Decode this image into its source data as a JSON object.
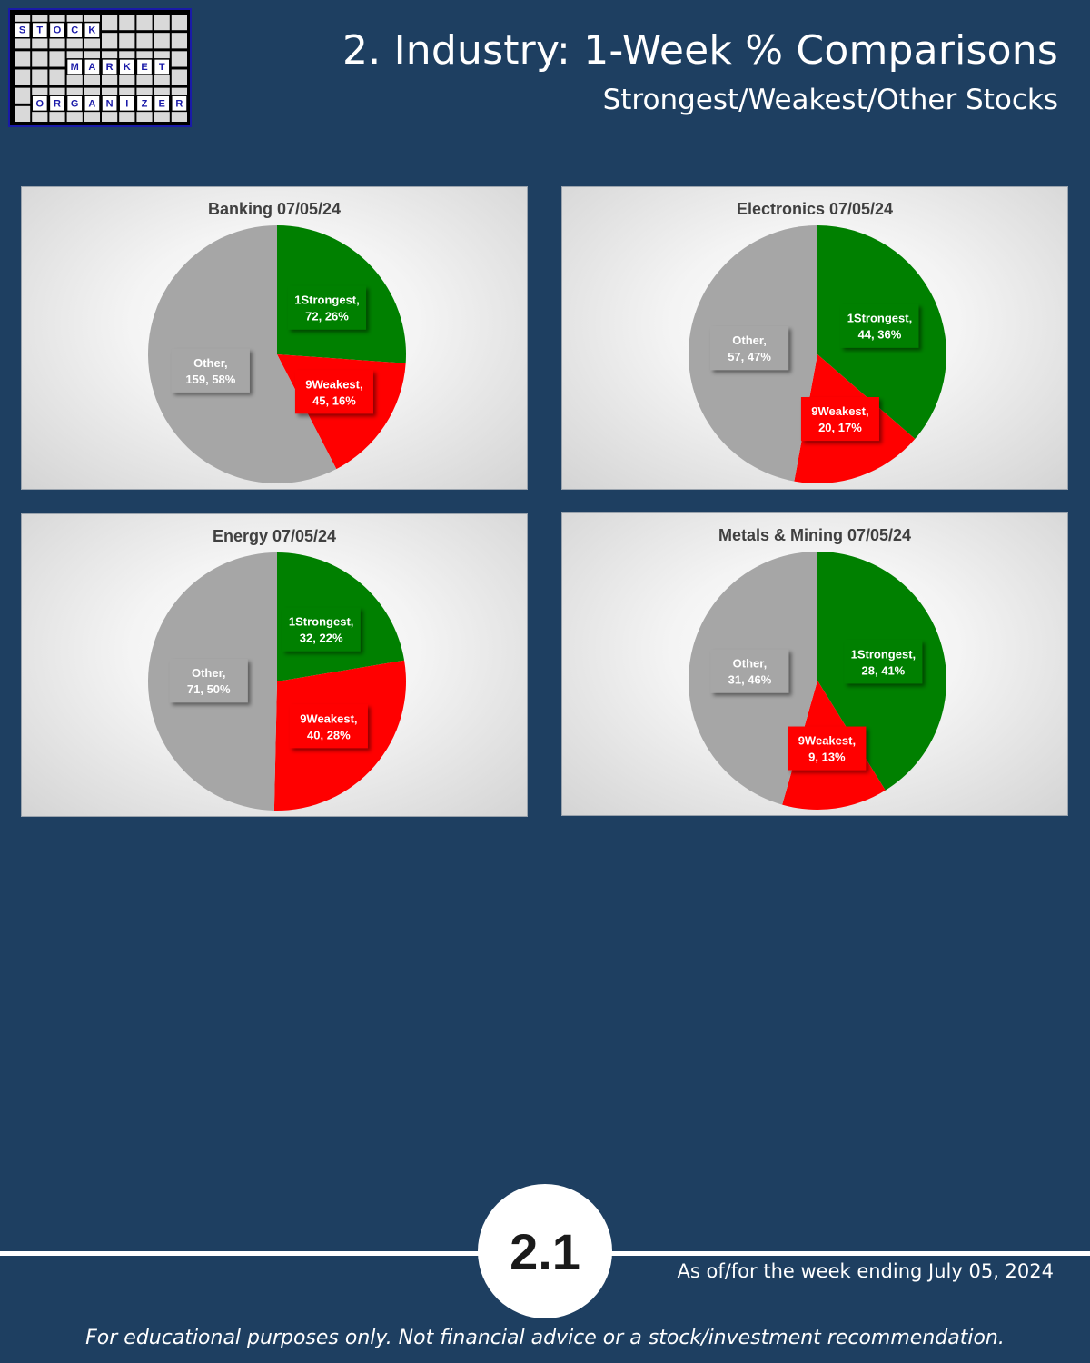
{
  "logo": {
    "line1": "STOCK",
    "line2": "MARKET",
    "line3": "ORGANIZER"
  },
  "header": {
    "title": "2. Industry: 1-Week % Comparisons",
    "subtitle": "Strongest/Weakest/Other Stocks"
  },
  "colors": {
    "strongest": "#008000",
    "weakest": "#ff0000",
    "other": "#a6a6a6",
    "background": "#1e3f61"
  },
  "chart_data": [
    {
      "type": "pie",
      "title": "Banking 07/05/24",
      "slices": [
        {
          "label": "1Strongest",
          "value": 72,
          "pct": "26%"
        },
        {
          "label": "9Weakest",
          "value": 45,
          "pct": "16%"
        },
        {
          "label": "Other",
          "value": 159,
          "pct": "58%"
        }
      ]
    },
    {
      "type": "pie",
      "title": "Electronics 07/05/24",
      "slices": [
        {
          "label": "1Strongest",
          "value": 44,
          "pct": "36%"
        },
        {
          "label": "9Weakest",
          "value": 20,
          "pct": "17%"
        },
        {
          "label": "Other",
          "value": 57,
          "pct": "47%"
        }
      ]
    },
    {
      "type": "pie",
      "title": "Energy 07/05/24",
      "slices": [
        {
          "label": "1Strongest",
          "value": 32,
          "pct": "22%"
        },
        {
          "label": "9Weakest",
          "value": 40,
          "pct": "28%"
        },
        {
          "label": "Other",
          "value": 71,
          "pct": "50%"
        }
      ]
    },
    {
      "type": "pie",
      "title": "Metals & Mining 07/05/24",
      "slices": [
        {
          "label": "1Strongest",
          "value": 28,
          "pct": "41%"
        },
        {
          "label": "9Weakest",
          "value": 9,
          "pct": "13%"
        },
        {
          "label": "Other",
          "value": 31,
          "pct": "46%"
        }
      ]
    }
  ],
  "footer": {
    "page_number": "2.1",
    "as_of": "As of/for the week ending July 05, 2024",
    "disclaimer": "For educational purposes only. Not financial advice or a stock/investment recommendation."
  }
}
